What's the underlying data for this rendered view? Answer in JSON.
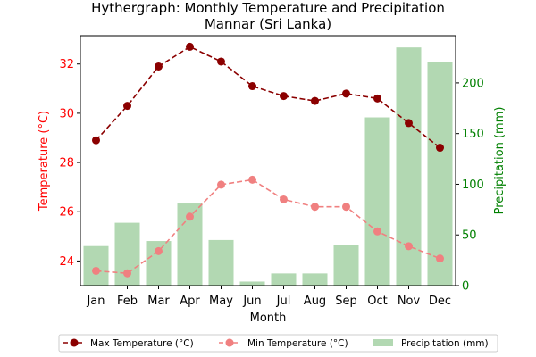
{
  "chart_data": {
    "type": "bar+line",
    "title": "Hythergraph: Monthly Temperature and Precipitation",
    "subtitle": "Mannar (Sri Lanka)",
    "xlabel": "Month",
    "ylabel_left": "Temperature (°C)",
    "ylabel_right": "Precipitation (mm)",
    "categories": [
      "Jan",
      "Feb",
      "Mar",
      "Apr",
      "May",
      "Jun",
      "Jul",
      "Aug",
      "Sep",
      "Oct",
      "Nov",
      "Dec"
    ],
    "ylim_left": [
      23.0,
      33.15
    ],
    "ylim_right": [
      0,
      246.6
    ],
    "yticks_left": [
      24,
      26,
      28,
      30,
      32
    ],
    "yticks_right": [
      0,
      50,
      100,
      150,
      200
    ],
    "series": [
      {
        "name": "Max Temperature (°C)",
        "type": "line",
        "axis": "left",
        "color": "#8b0000",
        "linestyle": "dashed",
        "marker": "circle",
        "values": [
          28.9,
          30.3,
          31.9,
          32.7,
          32.1,
          31.1,
          30.7,
          30.5,
          30.8,
          30.6,
          29.6,
          28.6
        ]
      },
      {
        "name": "Min Temperature (°C)",
        "type": "line",
        "axis": "left",
        "color": "#f08080",
        "linestyle": "dashed",
        "marker": "circle",
        "values": [
          23.6,
          23.5,
          24.4,
          25.8,
          27.1,
          27.3,
          26.5,
          26.2,
          26.2,
          25.2,
          24.6,
          24.1
        ]
      },
      {
        "name": "Precipitation (mm)",
        "type": "bar",
        "axis": "right",
        "color": "#b2d8b2",
        "values": [
          39,
          62,
          44,
          81,
          45,
          4,
          12,
          12,
          40,
          166,
          235,
          221
        ]
      }
    ],
    "legend": {
      "placement": "bottom-center",
      "columns": 3
    },
    "grid": false,
    "colors": {
      "left_axis": "#ff0000",
      "right_axis": "#008000"
    }
  }
}
